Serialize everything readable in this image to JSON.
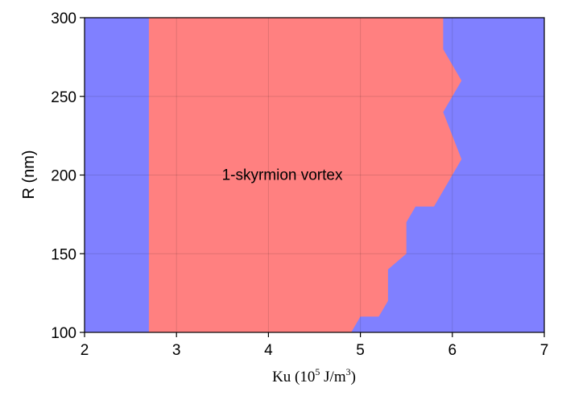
{
  "chart_data": {
    "type": "area",
    "title": "",
    "xlabel": {
      "prefix": "Ku (10",
      "exp1": "5",
      "middle": " J/m",
      "exp2": "3",
      "suffix": ")"
    },
    "ylabel": "R (nm)",
    "xlim": [
      2,
      7
    ],
    "ylim": [
      100,
      300
    ],
    "xticks": [
      2,
      3,
      4,
      5,
      6,
      7
    ],
    "yticks": [
      100,
      150,
      200,
      250,
      300
    ],
    "grid": true,
    "background_region": {
      "name": "",
      "color": "#8080ff"
    },
    "regions": [
      {
        "name": "1-skyrmion vortex",
        "color": "#ff8080",
        "label_position": {
          "x": 4.15,
          "y": 200
        },
        "boundary": [
          [
            2.7,
            100
          ],
          [
            2.7,
            300
          ],
          [
            5.9,
            300
          ],
          [
            5.9,
            280
          ],
          [
            6.1,
            260
          ],
          [
            5.9,
            240
          ],
          [
            6.1,
            210
          ],
          [
            5.8,
            180
          ],
          [
            5.6,
            180
          ],
          [
            5.5,
            170
          ],
          [
            5.5,
            150
          ],
          [
            5.3,
            140
          ],
          [
            5.3,
            120
          ],
          [
            5.2,
            110
          ],
          [
            5.0,
            110
          ],
          [
            4.9,
            100
          ]
        ]
      }
    ]
  }
}
